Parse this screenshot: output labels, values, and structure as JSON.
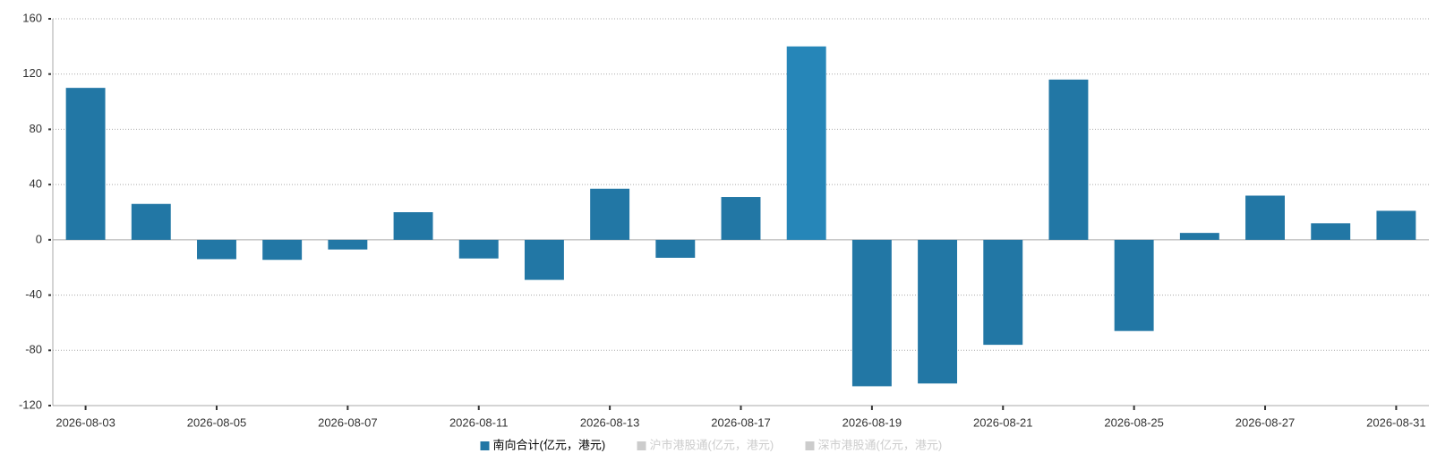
{
  "chart_data": {
    "type": "bar",
    "categories": [
      "2026-08-03",
      null,
      "2026-08-05",
      null,
      "2026-08-07",
      null,
      "2026-08-11",
      null,
      "2026-08-13",
      null,
      "2026-08-17",
      null,
      "2026-08-19",
      null,
      "2026-08-21",
      null,
      "2026-08-25",
      null,
      "2026-08-27",
      null,
      "2026-08-31"
    ],
    "series": [
      {
        "name": "南向合计(亿元，港元)",
        "color": "#2277a5",
        "values": [
          110,
          26,
          -14,
          -14.5,
          -7,
          20,
          -13.5,
          -29,
          37,
          -13,
          31,
          140,
          -106,
          -104,
          -76,
          116,
          -66,
          5,
          32,
          12,
          21
        ],
        "colors": [
          "#2277a5",
          "#2277a5",
          "#2277a5",
          "#2277a5",
          "#2277a5",
          "#2277a5",
          "#2277a5",
          "#2277a5",
          "#2277a5",
          "#2277a5",
          "#2277a5",
          "#2686b8",
          "#2277a5",
          "#2277a5",
          "#2277a5",
          "#2277a5",
          "#2277a5",
          "#2277a5",
          "#2277a5",
          "#2277a5",
          "#2277a5"
        ]
      },
      {
        "name": "沪市港股通(亿元，港元)",
        "color": "#ccc",
        "hidden": true
      },
      {
        "name": "深市港股通(亿元，港元)",
        "color": "#ccc",
        "hidden": true
      }
    ],
    "ylim": [
      -120,
      160
    ],
    "yticks": [
      -120,
      -80,
      -40,
      0,
      40,
      80,
      120,
      160
    ],
    "grid": true
  }
}
